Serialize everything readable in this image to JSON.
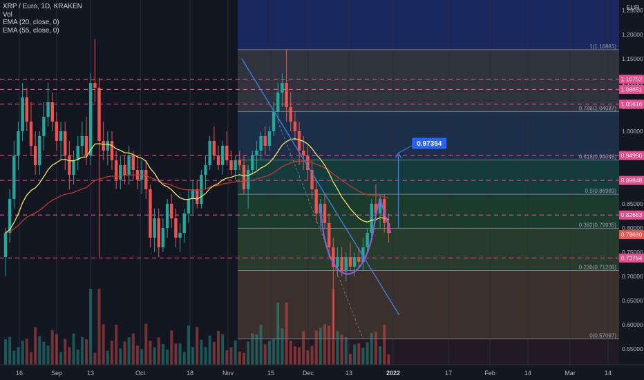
{
  "header": {
    "symbol_line": "XRP / Euro, 1D, KRAKEN",
    "indicators": [
      "Vol",
      "EMA (20, close, 0)",
      "EMA (55, close, 0)"
    ]
  },
  "colors": {
    "background": "#131722",
    "up": "#26a69a",
    "down": "#ef5350",
    "ema20": "#f5e663",
    "ema55": "#c0392b",
    "dashed_levels": "#e84b8a",
    "trendline": "#3f7fdc",
    "cup": "#8e5bd6",
    "target_arrow": "#3f7fdc",
    "fib_line": "#787b86"
  },
  "chart_data": {
    "type": "candlestick",
    "currency": "EUR",
    "ylim": [
      0.5,
      1.23
    ],
    "x_tick_labels": [
      "16",
      "Sep",
      "13",
      "Oct",
      "18",
      "Nov",
      "15",
      "Dec",
      "13",
      "2022",
      "17",
      "Feb",
      "14",
      "Mar",
      "14"
    ],
    "y_tick_labels": [
      "1.25000",
      "1.20000",
      "1.15000",
      "1.10000",
      "1.05000",
      "1.00000",
      "0.95000",
      "0.90000",
      "0.85000",
      "0.80000",
      "0.75000",
      "0.70000",
      "0.65000",
      "0.60000",
      "0.55000"
    ],
    "dashed_levels": [
      {
        "value": 1.10752,
        "label": "1.10752"
      },
      {
        "value": 1.08651,
        "label": "1.08651"
      },
      {
        "value": 1.05616,
        "label": "1.05616"
      },
      {
        "value": 0.9499,
        "label": "0.94990"
      },
      {
        "value": 0.89848,
        "label": "0.89848"
      },
      {
        "value": 0.82683,
        "label": "0.82683"
      },
      {
        "value": 0.73794,
        "label": "0.73794"
      }
    ],
    "last_price": {
      "value": 0.7863,
      "label": "0.78630"
    },
    "fibonacci": [
      {
        "ratio": "1",
        "value": 1.16881,
        "label": "1(1.16881)"
      },
      {
        "ratio": "0.786",
        "value": 1.04087,
        "label": "0.786(1.04087)"
      },
      {
        "ratio": "0.618",
        "value": 0.94048,
        "label": "0.618(0.94048)"
      },
      {
        "ratio": "0.5",
        "value": 0.86989,
        "label": "0.5(0.86989)"
      },
      {
        "ratio": "0.382",
        "value": 0.79935,
        "label": "0.382(0.79935)"
      },
      {
        "ratio": "0.236",
        "value": 0.71206,
        "label": "0.236(0.71206)"
      },
      {
        "ratio": "0",
        "value": 0.57097,
        "label": "0(0.57097)"
      }
    ],
    "target": {
      "value": 0.97354,
      "label": "0.97354"
    },
    "candles": [
      {
        "x": 0,
        "o": 0.74,
        "h": 0.8,
        "l": 0.7,
        "c": 0.79
      },
      {
        "x": 1,
        "o": 0.79,
        "h": 0.88,
        "l": 0.77,
        "c": 0.86
      },
      {
        "x": 2,
        "o": 0.86,
        "h": 0.98,
        "l": 0.84,
        "c": 0.95
      },
      {
        "x": 3,
        "o": 0.95,
        "h": 1.02,
        "l": 0.92,
        "c": 1.0
      },
      {
        "x": 4,
        "o": 1.0,
        "h": 1.1,
        "l": 0.98,
        "c": 1.07
      },
      {
        "x": 5,
        "o": 1.07,
        "h": 1.09,
        "l": 1.0,
        "c": 1.02
      },
      {
        "x": 6,
        "o": 1.02,
        "h": 1.06,
        "l": 0.95,
        "c": 0.97
      },
      {
        "x": 7,
        "o": 0.97,
        "h": 1.0,
        "l": 0.91,
        "c": 0.93
      },
      {
        "x": 8,
        "o": 0.93,
        "h": 1.0,
        "l": 0.91,
        "c": 0.99
      },
      {
        "x": 9,
        "o": 0.99,
        "h": 1.06,
        "l": 0.96,
        "c": 1.03
      },
      {
        "x": 10,
        "o": 1.03,
        "h": 1.1,
        "l": 1.01,
        "c": 1.06
      },
      {
        "x": 11,
        "o": 1.06,
        "h": 1.08,
        "l": 1.0,
        "c": 1.02
      },
      {
        "x": 12,
        "o": 1.02,
        "h": 1.04,
        "l": 0.96,
        "c": 0.98
      },
      {
        "x": 13,
        "o": 0.98,
        "h": 1.02,
        "l": 0.94,
        "c": 1.0
      },
      {
        "x": 14,
        "o": 1.0,
        "h": 1.02,
        "l": 0.92,
        "c": 0.95
      },
      {
        "x": 15,
        "o": 0.95,
        "h": 0.98,
        "l": 0.88,
        "c": 0.91
      },
      {
        "x": 16,
        "o": 0.91,
        "h": 0.96,
        "l": 0.89,
        "c": 0.94
      },
      {
        "x": 17,
        "o": 0.94,
        "h": 0.99,
        "l": 0.92,
        "c": 0.97
      },
      {
        "x": 18,
        "o": 0.97,
        "h": 1.02,
        "l": 0.95,
        "c": 0.99
      },
      {
        "x": 19,
        "o": 0.99,
        "h": 1.03,
        "l": 0.93,
        "c": 0.95
      },
      {
        "x": 20,
        "o": 0.95,
        "h": 1.12,
        "l": 0.93,
        "c": 1.1
      },
      {
        "x": 21,
        "o": 1.1,
        "h": 1.19,
        "l": 1.06,
        "c": 1.09
      },
      {
        "x": 22,
        "o": 1.09,
        "h": 1.11,
        "l": 0.74,
        "c": 0.98
      },
      {
        "x": 23,
        "o": 0.98,
        "h": 1.02,
        "l": 0.94,
        "c": 0.96
      },
      {
        "x": 24,
        "o": 0.96,
        "h": 1.0,
        "l": 0.93,
        "c": 0.98
      },
      {
        "x": 25,
        "o": 0.98,
        "h": 1.0,
        "l": 0.92,
        "c": 0.94
      },
      {
        "x": 26,
        "o": 0.94,
        "h": 0.96,
        "l": 0.88,
        "c": 0.9
      },
      {
        "x": 27,
        "o": 0.9,
        "h": 0.95,
        "l": 0.88,
        "c": 0.93
      },
      {
        "x": 28,
        "o": 0.93,
        "h": 0.95,
        "l": 0.89,
        "c": 0.91
      },
      {
        "x": 29,
        "o": 0.91,
        "h": 0.97,
        "l": 0.89,
        "c": 0.95
      },
      {
        "x": 30,
        "o": 0.95,
        "h": 0.96,
        "l": 0.9,
        "c": 0.92
      },
      {
        "x": 31,
        "o": 0.92,
        "h": 0.95,
        "l": 0.88,
        "c": 0.9
      },
      {
        "x": 32,
        "o": 0.9,
        "h": 0.94,
        "l": 0.87,
        "c": 0.92
      },
      {
        "x": 33,
        "o": 0.92,
        "h": 0.94,
        "l": 0.86,
        "c": 0.88
      },
      {
        "x": 34,
        "o": 0.88,
        "h": 0.89,
        "l": 0.76,
        "c": 0.78
      },
      {
        "x": 35,
        "o": 0.78,
        "h": 0.84,
        "l": 0.75,
        "c": 0.82
      },
      {
        "x": 36,
        "o": 0.82,
        "h": 0.84,
        "l": 0.74,
        "c": 0.76
      },
      {
        "x": 37,
        "o": 0.76,
        "h": 0.82,
        "l": 0.75,
        "c": 0.8
      },
      {
        "x": 38,
        "o": 0.8,
        "h": 0.86,
        "l": 0.78,
        "c": 0.85
      },
      {
        "x": 39,
        "o": 0.85,
        "h": 0.87,
        "l": 0.8,
        "c": 0.82
      },
      {
        "x": 40,
        "o": 0.82,
        "h": 0.84,
        "l": 0.76,
        "c": 0.78
      },
      {
        "x": 41,
        "o": 0.78,
        "h": 0.81,
        "l": 0.75,
        "c": 0.79
      },
      {
        "x": 42,
        "o": 0.79,
        "h": 0.84,
        "l": 0.77,
        "c": 0.83
      },
      {
        "x": 43,
        "o": 0.83,
        "h": 0.88,
        "l": 0.81,
        "c": 0.86
      },
      {
        "x": 44,
        "o": 0.86,
        "h": 0.9,
        "l": 0.83,
        "c": 0.88
      },
      {
        "x": 45,
        "o": 0.88,
        "h": 0.9,
        "l": 0.84,
        "c": 0.85
      },
      {
        "x": 46,
        "o": 0.85,
        "h": 0.92,
        "l": 0.84,
        "c": 0.91
      },
      {
        "x": 47,
        "o": 0.91,
        "h": 0.95,
        "l": 0.88,
        "c": 0.93
      },
      {
        "x": 48,
        "o": 0.93,
        "h": 0.99,
        "l": 0.92,
        "c": 0.98
      },
      {
        "x": 49,
        "o": 0.98,
        "h": 1.01,
        "l": 0.94,
        "c": 0.95
      },
      {
        "x": 50,
        "o": 0.95,
        "h": 0.97,
        "l": 0.92,
        "c": 0.93
      },
      {
        "x": 51,
        "o": 0.93,
        "h": 0.98,
        "l": 0.91,
        "c": 0.97
      },
      {
        "x": 52,
        "o": 0.97,
        "h": 1.0,
        "l": 0.93,
        "c": 0.94
      },
      {
        "x": 53,
        "o": 0.94,
        "h": 0.96,
        "l": 0.91,
        "c": 0.92
      },
      {
        "x": 54,
        "o": 0.92,
        "h": 0.95,
        "l": 0.9,
        "c": 0.94
      },
      {
        "x": 55,
        "o": 0.94,
        "h": 0.96,
        "l": 0.92,
        "c": 0.93
      },
      {
        "x": 56,
        "o": 0.93,
        "h": 0.95,
        "l": 0.87,
        "c": 0.88
      },
      {
        "x": 57,
        "o": 0.88,
        "h": 0.93,
        "l": 0.84,
        "c": 0.92
      },
      {
        "x": 58,
        "o": 0.92,
        "h": 0.96,
        "l": 0.91,
        "c": 0.95
      },
      {
        "x": 59,
        "o": 0.95,
        "h": 0.98,
        "l": 0.92,
        "c": 0.96
      },
      {
        "x": 60,
        "o": 0.96,
        "h": 1.0,
        "l": 0.94,
        "c": 0.99
      },
      {
        "x": 61,
        "o": 0.99,
        "h": 1.01,
        "l": 0.95,
        "c": 0.97
      },
      {
        "x": 62,
        "o": 0.97,
        "h": 1.01,
        "l": 0.96,
        "c": 1.0
      },
      {
        "x": 63,
        "o": 1.0,
        "h": 1.06,
        "l": 0.99,
        "c": 1.04
      },
      {
        "x": 64,
        "o": 1.04,
        "h": 1.1,
        "l": 1.02,
        "c": 1.08
      },
      {
        "x": 65,
        "o": 1.08,
        "h": 1.12,
        "l": 1.05,
        "c": 1.1
      },
      {
        "x": 66,
        "o": 1.1,
        "h": 1.17,
        "l": 1.02,
        "c": 1.05
      },
      {
        "x": 67,
        "o": 1.05,
        "h": 1.08,
        "l": 1.0,
        "c": 1.02
      },
      {
        "x": 68,
        "o": 1.02,
        "h": 1.04,
        "l": 0.98,
        "c": 1.0
      },
      {
        "x": 69,
        "o": 1.0,
        "h": 1.02,
        "l": 0.93,
        "c": 0.96
      },
      {
        "x": 70,
        "o": 0.96,
        "h": 0.99,
        "l": 0.92,
        "c": 0.95
      },
      {
        "x": 71,
        "o": 0.95,
        "h": 0.97,
        "l": 0.9,
        "c": 0.92
      },
      {
        "x": 72,
        "o": 0.92,
        "h": 0.94,
        "l": 0.86,
        "c": 0.88
      },
      {
        "x": 73,
        "o": 0.88,
        "h": 0.9,
        "l": 0.81,
        "c": 0.83
      },
      {
        "x": 74,
        "o": 0.83,
        "h": 0.86,
        "l": 0.8,
        "c": 0.85
      },
      {
        "x": 75,
        "o": 0.85,
        "h": 0.87,
        "l": 0.8,
        "c": 0.81
      },
      {
        "x": 76,
        "o": 0.81,
        "h": 0.83,
        "l": 0.74,
        "c": 0.76
      },
      {
        "x": 77,
        "o": 0.76,
        "h": 0.78,
        "l": 0.57,
        "c": 0.72
      },
      {
        "x": 78,
        "o": 0.72,
        "h": 0.76,
        "l": 0.7,
        "c": 0.74
      },
      {
        "x": 79,
        "o": 0.74,
        "h": 0.76,
        "l": 0.7,
        "c": 0.71
      },
      {
        "x": 80,
        "o": 0.71,
        "h": 0.75,
        "l": 0.69,
        "c": 0.74
      },
      {
        "x": 81,
        "o": 0.74,
        "h": 0.77,
        "l": 0.71,
        "c": 0.72
      },
      {
        "x": 82,
        "o": 0.72,
        "h": 0.75,
        "l": 0.7,
        "c": 0.74
      },
      {
        "x": 83,
        "o": 0.74,
        "h": 0.76,
        "l": 0.72,
        "c": 0.73
      },
      {
        "x": 84,
        "o": 0.73,
        "h": 0.78,
        "l": 0.71,
        "c": 0.76
      },
      {
        "x": 85,
        "o": 0.76,
        "h": 0.8,
        "l": 0.75,
        "c": 0.79
      },
      {
        "x": 86,
        "o": 0.79,
        "h": 0.86,
        "l": 0.78,
        "c": 0.85
      },
      {
        "x": 87,
        "o": 0.85,
        "h": 0.89,
        "l": 0.82,
        "c": 0.83
      },
      {
        "x": 88,
        "o": 0.83,
        "h": 0.87,
        "l": 0.8,
        "c": 0.86
      },
      {
        "x": 89,
        "o": 0.86,
        "h": 0.87,
        "l": 0.79,
        "c": 0.81
      },
      {
        "x": 90,
        "o": 0.81,
        "h": 0.83,
        "l": 0.77,
        "c": 0.79
      }
    ]
  }
}
